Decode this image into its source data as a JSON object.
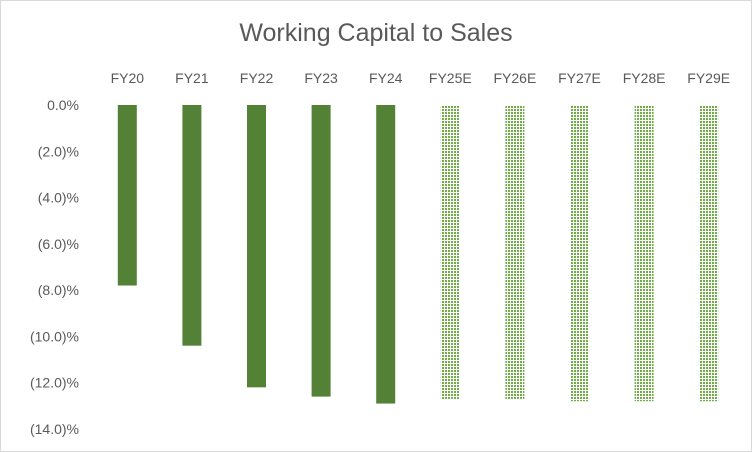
{
  "chart_data": {
    "type": "bar",
    "title": "Working Capital to Sales",
    "categories": [
      "FY20",
      "FY21",
      "FY22",
      "FY23",
      "FY24",
      "FY25E",
      "FY26E",
      "FY27E",
      "FY28E",
      "FY29E"
    ],
    "values": [
      -7.8,
      -10.4,
      -12.2,
      -12.6,
      -12.9,
      -12.7,
      -12.7,
      -12.8,
      -12.8,
      -12.8
    ],
    "estimated": [
      false,
      false,
      false,
      false,
      false,
      true,
      true,
      true,
      true,
      true
    ],
    "y_ticks": [
      "0.0%",
      "(2.0)%",
      "(4.0)%",
      "(6.0)%",
      "(8.0)%",
      "(10.0)%",
      "(12.0)%",
      "(14.0)%"
    ],
    "ylim": [
      -14,
      0
    ],
    "xlabel": "",
    "ylabel": "",
    "x_axis_position": "top",
    "grid": false,
    "legend": "none",
    "colors": {
      "actual": "#538135",
      "estimate": "#70ad47"
    }
  }
}
